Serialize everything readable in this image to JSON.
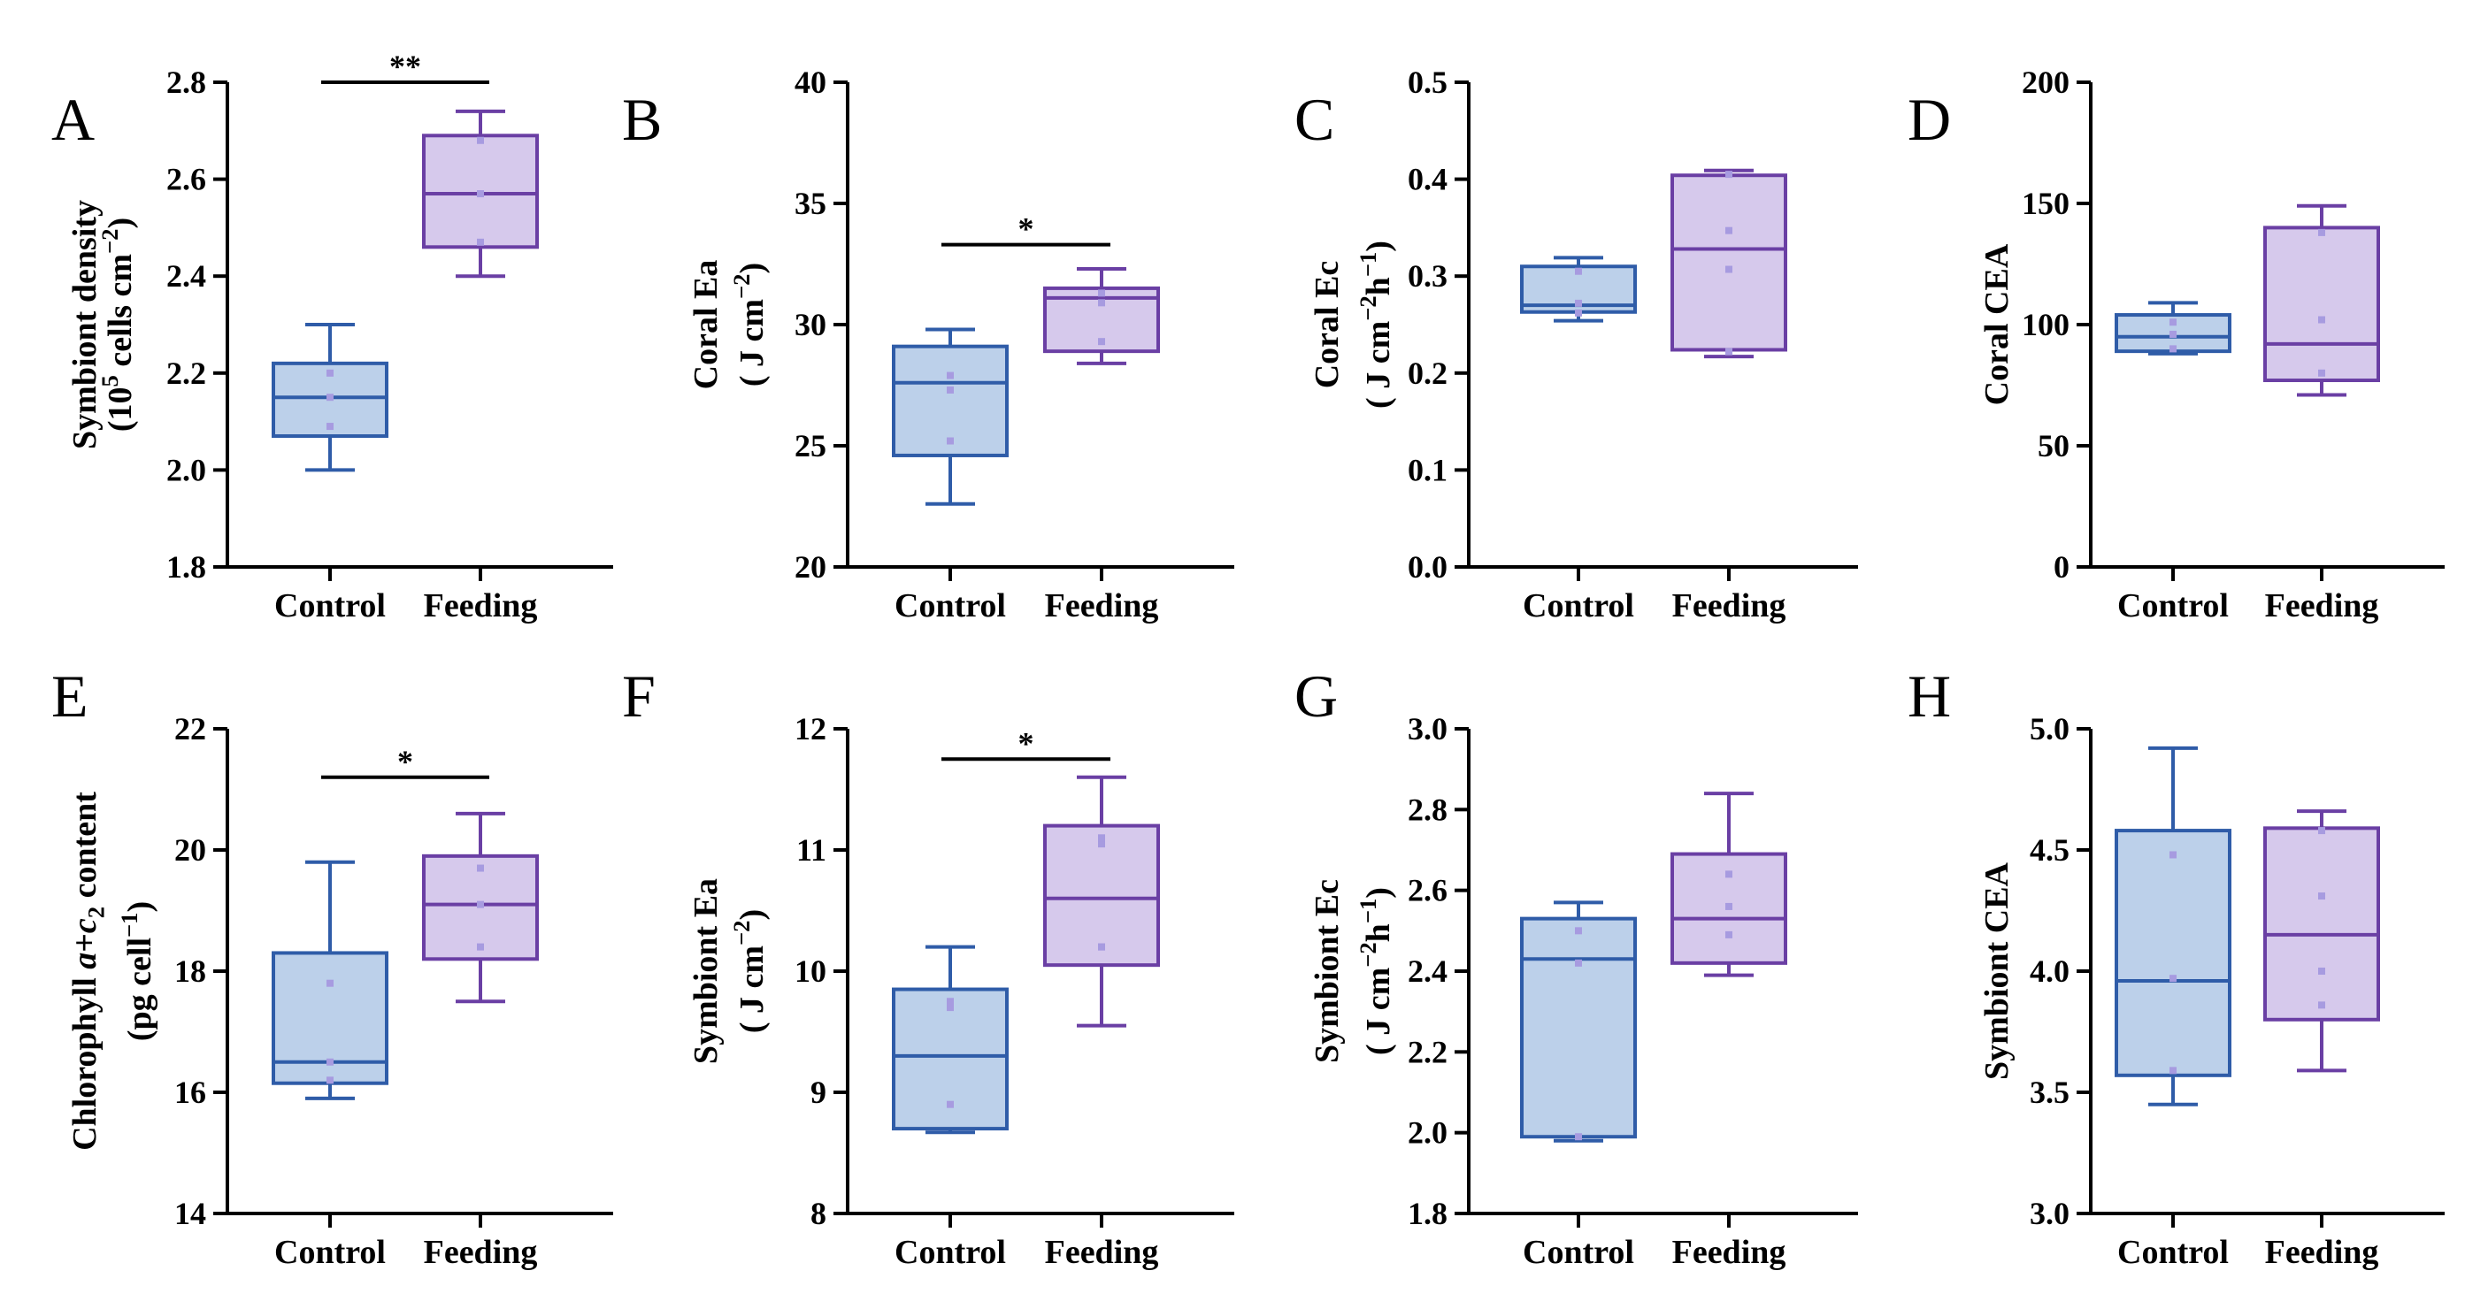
{
  "colors": {
    "control_stroke": "#2f5ca8",
    "control_fill": "#bcd0ea",
    "feeding_stroke": "#6a3fa4",
    "feeding_fill": "#d6c9ec",
    "dot": "#a79be0",
    "axis": "#000000"
  },
  "chart_data": [
    {
      "type": "box",
      "panel": "A",
      "ylabel": [
        "Symbiont density",
        "(10^5 cells cm^-2)"
      ],
      "ylabel_rich": [
        [
          [
            "Symbiont density",
            ""
          ]
        ],
        [
          [
            "(10",
            ""
          ],
          [
            "5",
            "sup"
          ],
          [
            " cells cm",
            ""
          ],
          [
            "−2",
            "sup"
          ],
          [
            ")",
            ""
          ]
        ]
      ],
      "ylim": [
        1.8,
        2.8
      ],
      "yticks": [
        "1.8",
        "2.0",
        "2.2",
        "2.4",
        "2.6",
        "2.8"
      ],
      "categories": [
        "Control",
        "Feeding"
      ],
      "boxes": [
        {
          "group": "Control",
          "min": 2.0,
          "q1": 2.07,
          "median": 2.15,
          "q3": 2.22,
          "max": 2.3,
          "points": [
            2.09,
            2.15,
            2.2
          ]
        },
        {
          "group": "Feeding",
          "min": 2.4,
          "q1": 2.46,
          "median": 2.57,
          "q3": 2.69,
          "max": 2.74,
          "points": [
            2.47,
            2.57,
            2.68
          ]
        }
      ],
      "significance": {
        "label": "**",
        "y": 2.8
      }
    },
    {
      "type": "box",
      "panel": "B",
      "ylabel": [
        "Coral Ea",
        "( J cm^-2)"
      ],
      "ylabel_rich": [
        [
          [
            "Coral Ea",
            ""
          ]
        ],
        [
          [
            "( J cm",
            ""
          ],
          [
            "−2",
            "sup"
          ],
          [
            ")",
            ""
          ]
        ]
      ],
      "ylim": [
        20,
        40
      ],
      "yticks": [
        "20",
        "25",
        "30",
        "35",
        "40"
      ],
      "categories": [
        "Control",
        "Feeding"
      ],
      "boxes": [
        {
          "group": "Control",
          "min": 22.6,
          "q1": 24.6,
          "median": 27.6,
          "q3": 29.1,
          "max": 29.8,
          "points": [
            25.2,
            27.3,
            27.9
          ]
        },
        {
          "group": "Feeding",
          "min": 28.4,
          "q1": 28.9,
          "median": 31.1,
          "q3": 31.5,
          "max": 32.3,
          "points": [
            29.3,
            30.9,
            31.3
          ]
        }
      ],
      "significance": {
        "label": "*",
        "y": 33.3
      }
    },
    {
      "type": "box",
      "panel": "C",
      "ylabel": [
        "Coral Ec",
        "( J cm^-2 h^-1)"
      ],
      "ylabel_rich": [
        [
          [
            "Coral Ec",
            ""
          ]
        ],
        [
          [
            "( J cm",
            ""
          ],
          [
            "−2",
            "sup"
          ],
          [
            "h",
            ""
          ],
          [
            "−1",
            "sup"
          ],
          [
            ")",
            ""
          ]
        ]
      ],
      "ylim": [
        0.0,
        0.5
      ],
      "yticks": [
        "0.0",
        "0.1",
        "0.2",
        "0.3",
        "0.4",
        "0.5"
      ],
      "categories": [
        "Control",
        "Feeding"
      ],
      "boxes": [
        {
          "group": "Control",
          "min": 0.254,
          "q1": 0.263,
          "median": 0.27,
          "q3": 0.31,
          "max": 0.319,
          "points": [
            0.262,
            0.272,
            0.305
          ]
        },
        {
          "group": "Feeding",
          "min": 0.217,
          "q1": 0.224,
          "median": 0.328,
          "q3": 0.404,
          "max": 0.409,
          "points": [
            0.222,
            0.307,
            0.347,
            0.405
          ]
        }
      ],
      "significance": null
    },
    {
      "type": "box",
      "panel": "D",
      "ylabel": [
        "Coral CEA"
      ],
      "ylabel_rich": [
        [
          [
            "Coral CEA",
            ""
          ]
        ]
      ],
      "ylim": [
        0,
        200
      ],
      "yticks": [
        "0",
        "50",
        "100",
        "150",
        "200"
      ],
      "categories": [
        "Control",
        "Feeding"
      ],
      "boxes": [
        {
          "group": "Control",
          "min": 88,
          "q1": 89,
          "median": 95,
          "q3": 104,
          "max": 109,
          "points": [
            90,
            96,
            101
          ]
        },
        {
          "group": "Feeding",
          "min": 71,
          "q1": 77,
          "median": 92,
          "q3": 140,
          "max": 149,
          "points": [
            80,
            102,
            138
          ]
        }
      ],
      "significance": null
    },
    {
      "type": "box",
      "panel": "E",
      "ylabel": [
        "Chlorophyll a+c2 content",
        "(pg cell^-1)"
      ],
      "ylabel_rich": [
        [
          [
            "Chlorophyll ",
            ""
          ],
          [
            "a",
            "i"
          ],
          [
            "+",
            ""
          ],
          [
            "c",
            "i"
          ],
          [
            "2",
            "sub"
          ],
          [
            " content",
            ""
          ]
        ],
        [
          [
            "(pg cell",
            ""
          ],
          [
            "−1",
            "sup"
          ],
          [
            ")",
            ""
          ]
        ]
      ],
      "ylim": [
        14,
        22
      ],
      "yticks": [
        "14",
        "16",
        "18",
        "20",
        "22"
      ],
      "categories": [
        "Control",
        "Feeding"
      ],
      "boxes": [
        {
          "group": "Control",
          "min": 15.9,
          "q1": 16.15,
          "median": 16.5,
          "q3": 18.3,
          "max": 19.8,
          "points": [
            16.2,
            16.5,
            17.8
          ]
        },
        {
          "group": "Feeding",
          "min": 17.5,
          "q1": 18.2,
          "median": 19.1,
          "q3": 19.9,
          "max": 20.6,
          "points": [
            18.4,
            19.1,
            19.7
          ]
        }
      ],
      "significance": {
        "label": "*",
        "y": 21.2
      }
    },
    {
      "type": "box",
      "panel": "F",
      "ylabel": [
        "Symbiont Ea",
        "( J cm^-2)"
      ],
      "ylabel_rich": [
        [
          [
            "Symbiont Ea",
            ""
          ]
        ],
        [
          [
            "( J cm",
            ""
          ],
          [
            "−2",
            "sup"
          ],
          [
            ")",
            ""
          ]
        ]
      ],
      "ylim": [
        8,
        12
      ],
      "yticks": [
        "8",
        "9",
        "10",
        "11",
        "12"
      ],
      "categories": [
        "Control",
        "Feeding"
      ],
      "boxes": [
        {
          "group": "Control",
          "min": 8.67,
          "q1": 8.7,
          "median": 9.3,
          "q3": 9.85,
          "max": 10.2,
          "points": [
            8.9,
            9.7,
            9.75
          ]
        },
        {
          "group": "Feeding",
          "min": 9.55,
          "q1": 10.05,
          "median": 10.6,
          "q3": 11.2,
          "max": 11.6,
          "points": [
            10.2,
            10.2,
            11.05,
            11.1
          ]
        }
      ],
      "significance": {
        "label": "*",
        "y": 11.75
      }
    },
    {
      "type": "box",
      "panel": "G",
      "ylabel": [
        "Symbiont Ec",
        "( J cm^-2 h^-1)"
      ],
      "ylabel_rich": [
        [
          [
            "Symbiont Ec",
            ""
          ]
        ],
        [
          [
            "( J cm",
            ""
          ],
          [
            "−2",
            "sup"
          ],
          [
            "h",
            ""
          ],
          [
            "−1",
            "sup"
          ],
          [
            ")",
            ""
          ]
        ]
      ],
      "ylim": [
        1.8,
        3.0
      ],
      "yticks": [
        "1.8",
        "2.0",
        "2.2",
        "2.4",
        "2.6",
        "2.8",
        "3.0"
      ],
      "categories": [
        "Control",
        "Feeding"
      ],
      "boxes": [
        {
          "group": "Control",
          "min": 1.98,
          "q1": 1.99,
          "median": 2.43,
          "q3": 2.53,
          "max": 2.57,
          "points": [
            1.99,
            2.42,
            2.5
          ]
        },
        {
          "group": "Feeding",
          "min": 2.39,
          "q1": 2.42,
          "median": 2.53,
          "q3": 2.69,
          "max": 2.84,
          "points": [
            2.49,
            2.56,
            2.64
          ]
        }
      ],
      "significance": null
    },
    {
      "type": "box",
      "panel": "H",
      "ylabel": [
        "Symbiont CEA"
      ],
      "ylabel_rich": [
        [
          [
            "Symbiont CEA",
            ""
          ]
        ]
      ],
      "ylim": [
        3.0,
        5.0
      ],
      "yticks": [
        "3.0",
        "3.5",
        "4.0",
        "4.5",
        "5.0"
      ],
      "categories": [
        "Control",
        "Feeding"
      ],
      "boxes": [
        {
          "group": "Control",
          "min": 3.45,
          "q1": 3.57,
          "median": 3.96,
          "q3": 4.58,
          "max": 4.92,
          "points": [
            3.59,
            3.97,
            4.48
          ]
        },
        {
          "group": "Feeding",
          "min": 3.59,
          "q1": 3.8,
          "median": 4.15,
          "q3": 4.59,
          "max": 4.66,
          "points": [
            3.86,
            4.0,
            4.31,
            4.58
          ]
        }
      ],
      "significance": null
    }
  ]
}
